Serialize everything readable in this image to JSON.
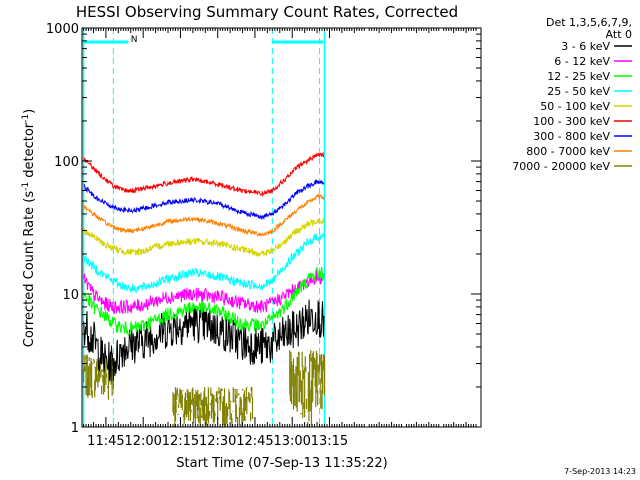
{
  "chart_data": {
    "type": "line",
    "title": "HESSI Observing Summary Count Rates, Corrected",
    "xlabel": "Start Time (07-Sep-13 11:35:22)",
    "ylabel": "Corrected Count Rate (s⁻¹ detector⁻¹)",
    "ylabel_parts": {
      "main": "Corrected Count Rate (s",
      "sup1": "-1",
      "mid": " detector",
      "sup2": "-1",
      "end": ")"
    },
    "y_scale": "log",
    "ylim": [
      1,
      1000
    ],
    "y_ticks": [
      {
        "value": 1,
        "label": "1"
      },
      {
        "value": 10,
        "label": "10"
      },
      {
        "value": 100,
        "label": "100"
      },
      {
        "value": 1000,
        "label": "1000"
      }
    ],
    "xlim_minutes": [
      35.37,
      196.0
    ],
    "x_ticks": [
      {
        "minute": 45,
        "label": "11:45"
      },
      {
        "minute": 60,
        "label": "12:00"
      },
      {
        "minute": 75,
        "label": "12:15"
      },
      {
        "minute": 90,
        "label": "12:30"
      },
      {
        "minute": 105,
        "label": "12:45"
      },
      {
        "minute": 120,
        "label": "13:00"
      },
      {
        "minute": 135,
        "label": "13:15"
      }
    ],
    "legend": {
      "placement": "right",
      "header": [
        "Det 1,3,5,6,7,9,",
        "Att 0"
      ],
      "entries": [
        {
          "label": "3 - 6 keV",
          "color": "#000000"
        },
        {
          "label": "6 - 12 keV",
          "color": "#ff00ff"
        },
        {
          "label": "12 - 25 keV",
          "color": "#00ff00"
        },
        {
          "label": "25 - 50 keV",
          "color": "#00ffff"
        },
        {
          "label": "50 - 100 keV",
          "color": "#d4d400"
        },
        {
          "label": "100 - 300 keV",
          "color": "#ff0000"
        },
        {
          "label": "300 - 800 keV",
          "color": "#0000ff"
        },
        {
          "label": "800 - 7000 keV",
          "color": "#ff8000"
        },
        {
          "label": "7000 - 20000 keV",
          "color": "#808000"
        }
      ]
    },
    "annotations": {
      "night_bars": [
        [
          35.37,
          54.0
        ],
        [
          112.0,
          132.5
        ]
      ],
      "saa_mark": {
        "minute": 55.0,
        "label": "N"
      },
      "dashed_lines_minutes": [
        48.0,
        112.0,
        131.0
      ],
      "solid_lines_minutes": [
        36.0,
        133.0
      ],
      "color": "#00ffff"
    },
    "series": [
      {
        "name": "3 - 6 keV",
        "color": "#000000",
        "noise": 0.35,
        "x": [
          36,
          40,
          44,
          48,
          52,
          56,
          60,
          70,
          80,
          90,
          100,
          108,
          112,
          114,
          118,
          122,
          126,
          130,
          133
        ],
        "y": [
          6,
          4.5,
          3.2,
          3,
          4,
          4.2,
          4.5,
          5.5,
          6.2,
          5.5,
          4.3,
          4,
          4.2,
          4.5,
          5,
          5.5,
          6.5,
          7,
          6
        ]
      },
      {
        "name": "6 - 12 keV",
        "color": "#ff00ff",
        "noise": 0.12,
        "x": [
          36,
          40,
          44,
          48,
          52,
          56,
          60,
          70,
          80,
          90,
          100,
          108,
          112,
          114,
          118,
          122,
          126,
          130,
          133
        ],
        "y": [
          13,
          10,
          8.5,
          8,
          8,
          8,
          8.3,
          9.5,
          10,
          9.5,
          8.5,
          8,
          8.5,
          9,
          10,
          11,
          12.5,
          13.5,
          13
        ]
      },
      {
        "name": "12 - 25 keV",
        "color": "#00ff00",
        "noise": 0.12,
        "x": [
          36,
          40,
          44,
          48,
          52,
          56,
          60,
          70,
          80,
          90,
          100,
          108,
          112,
          114,
          118,
          122,
          126,
          130,
          133
        ],
        "y": [
          10,
          8,
          7,
          6,
          5.5,
          5.5,
          5.8,
          7,
          8,
          7.5,
          6,
          5.8,
          6.5,
          7,
          8.5,
          10.5,
          12.5,
          14.5,
          14
        ]
      },
      {
        "name": "25 - 50 keV",
        "color": "#00ffff",
        "noise": 0.08,
        "x": [
          36,
          40,
          44,
          48,
          52,
          56,
          60,
          70,
          80,
          90,
          100,
          108,
          112,
          114,
          118,
          122,
          126,
          130,
          133
        ],
        "y": [
          19,
          16,
          14,
          12.5,
          11.5,
          11,
          11.2,
          13,
          14.5,
          13.5,
          12,
          11.5,
          12.5,
          14,
          17,
          20.5,
          24,
          27,
          27
        ]
      },
      {
        "name": "50 - 100 keV",
        "color": "#d4d400",
        "noise": 0.06,
        "x": [
          36,
          40,
          44,
          48,
          52,
          56,
          60,
          70,
          80,
          90,
          100,
          108,
          112,
          114,
          118,
          122,
          126,
          130,
          133
        ],
        "y": [
          30,
          27,
          24,
          22,
          21,
          20.5,
          21,
          24,
          25,
          24,
          21.5,
          20,
          21,
          22.5,
          26,
          30,
          33,
          36,
          35
        ]
      },
      {
        "name": "100 - 300 keV",
        "color": "#ff0000",
        "noise": 0.04,
        "x": [
          36,
          40,
          44,
          48,
          52,
          56,
          60,
          70,
          80,
          90,
          100,
          108,
          112,
          114,
          118,
          122,
          126,
          130,
          133
        ],
        "y": [
          105,
          88,
          75,
          65,
          60,
          60,
          62,
          68,
          73,
          67,
          60,
          57,
          60,
          65,
          75,
          90,
          100,
          112,
          110
        ]
      },
      {
        "name": "300 - 800 keV",
        "color": "#0000ff",
        "noise": 0.04,
        "x": [
          36,
          40,
          44,
          48,
          52,
          56,
          60,
          70,
          80,
          90,
          100,
          108,
          112,
          114,
          118,
          122,
          126,
          130,
          133
        ],
        "y": [
          65,
          55,
          49,
          45,
          43,
          42,
          44,
          49,
          51,
          48,
          41,
          38,
          40,
          43,
          49,
          58,
          64,
          70,
          68
        ]
      },
      {
        "name": "800 - 7000 keV",
        "color": "#ff8000",
        "noise": 0.04,
        "x": [
          36,
          40,
          44,
          48,
          52,
          56,
          60,
          70,
          80,
          90,
          100,
          108,
          112,
          114,
          118,
          122,
          126,
          130,
          133
        ],
        "y": [
          46,
          40,
          35,
          32,
          30,
          30,
          31,
          35,
          37,
          34,
          30,
          28,
          29.5,
          32,
          37,
          43,
          48,
          54,
          53
        ]
      }
    ],
    "attenuator_band": {
      "name": "7000 - 20000 keV",
      "color": "#808000",
      "segments": [
        [
          36,
          48,
          1.6,
          3.5
        ],
        [
          72,
          104,
          1.0,
          2.0
        ],
        [
          119,
          133,
          1.0,
          3.8
        ]
      ]
    }
  },
  "footer": {
    "timestamp": "7-Sep-2013 14:23"
  }
}
